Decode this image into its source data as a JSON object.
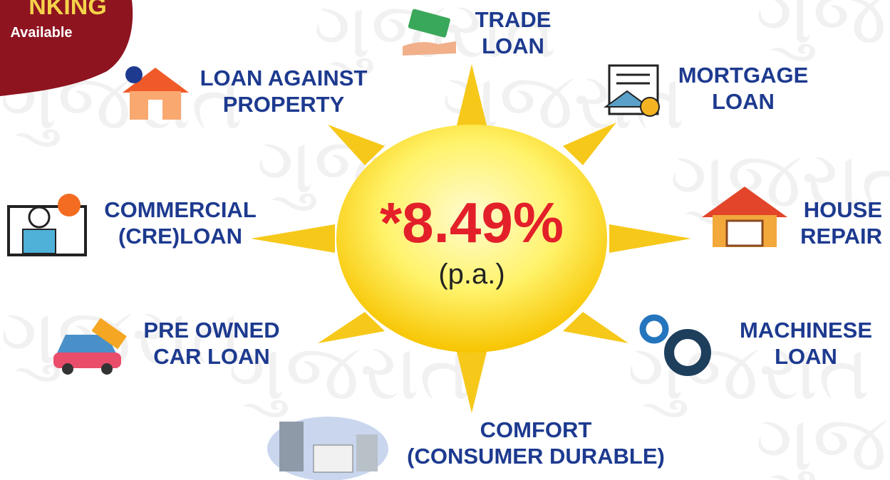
{
  "badge": {
    "lines": [
      "NKING",
      "Available"
    ]
  },
  "watermark": "ગુજરાત",
  "center": {
    "rate": "*8.49%",
    "period": "(p.a.)"
  },
  "items": [
    {
      "lines": [
        "TRADE",
        "LOAN"
      ]
    },
    {
      "lines": [
        "LOAN AGAINST",
        "PROPERTY"
      ]
    },
    {
      "lines": [
        "MORTGAGE",
        "LOAN"
      ]
    },
    {
      "lines": [
        "COMMERCIAL",
        "(CRE)LOAN"
      ]
    },
    {
      "lines": [
        "HOUSE",
        "REPAIR"
      ]
    },
    {
      "lines": [
        "PRE OWNED",
        "CAR LOAN"
      ]
    },
    {
      "lines": [
        "MACHINESE",
        "LOAN"
      ]
    },
    {
      "lines": [
        "COMFORT",
        "(CONSUMER DURABLE)"
      ]
    }
  ]
}
